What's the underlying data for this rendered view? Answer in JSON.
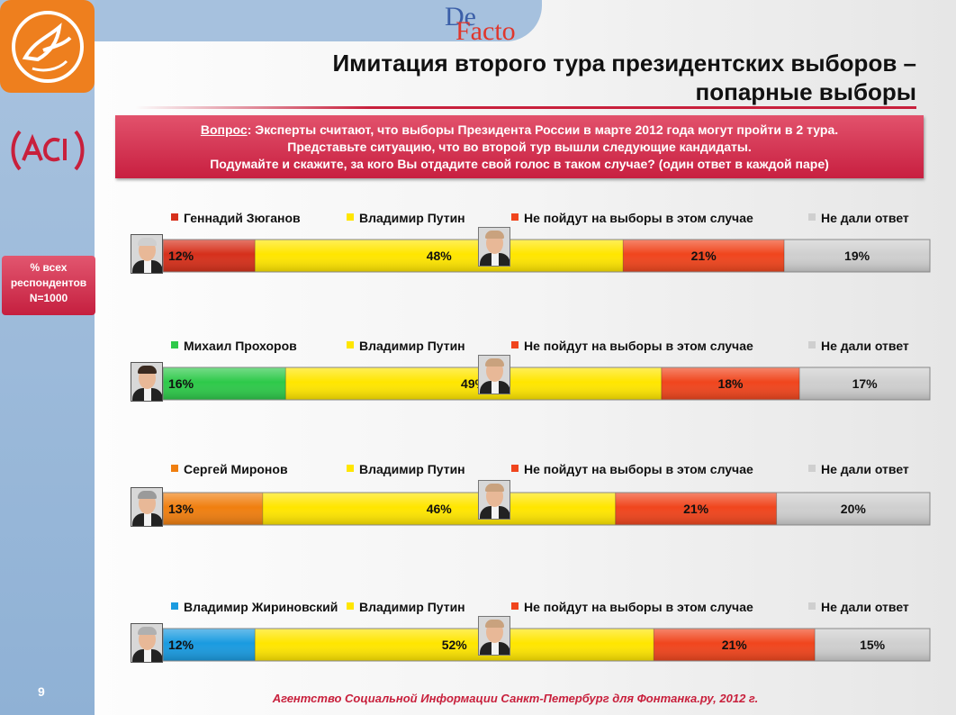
{
  "header": {
    "title_line1": "Имитация второго тура президентских выборов –",
    "title_line2": "попарные выборы",
    "logo_de": "De",
    "logo_facto": "Facto"
  },
  "question": {
    "label": "Вопрос",
    "line1": ": Эксперты считают, что выборы Президента России в марте 2012 года могут пройти в 2 тура.",
    "line2": "Представьте ситуацию, что во второй тур вышли следующие кандидаты.",
    "line3": "Подумайте и скажите, за кого Вы отдадите свой голос в таком случае? (один ответ в каждой паре)"
  },
  "respondents": {
    "line1": "% всех",
    "line2": "респондентов",
    "line3": "N=1000"
  },
  "page_number": "9",
  "footer": "Агентство Социальной Информации Санкт-Петербург для Фонтанка.ру, 2012 г.",
  "colors": {
    "putin": "#ffe600",
    "no_vote": "#f0451d",
    "no_answer": "#cfcfcf",
    "brand_red": "#c8203c",
    "sidebar_blue": "#99b8da",
    "logo_orange": "#ee7f1e"
  },
  "chart_data": {
    "type": "bar",
    "orientation": "horizontal",
    "stacked": true,
    "xlim": [
      0,
      100
    ],
    "unit": "%",
    "rows": [
      {
        "series": [
          {
            "name": "Геннадий Зюганов",
            "value": 12,
            "label": "12%",
            "color": "#d6301b"
          },
          {
            "name": "Владимир Путин",
            "value": 48,
            "label": "48%",
            "color": "#ffe600"
          },
          {
            "name": "Не пойдут на выборы в этом случае",
            "value": 21,
            "label": "21%",
            "color": "#f0451d"
          },
          {
            "name": "Не дали ответ",
            "value": 19,
            "label": "19%",
            "color": "#cfcfcf"
          }
        ]
      },
      {
        "series": [
          {
            "name": "Михаил Прохоров",
            "value": 16,
            "label": "16%",
            "color": "#2ec94a"
          },
          {
            "name": "Владимир Путин",
            "value": 49,
            "label": "49%",
            "color": "#ffe600"
          },
          {
            "name": "Не пойдут на выборы в этом случае",
            "value": 18,
            "label": "18%",
            "color": "#f0451d"
          },
          {
            "name": "Не дали ответ",
            "value": 17,
            "label": "17%",
            "color": "#cfcfcf"
          }
        ]
      },
      {
        "series": [
          {
            "name": "Сергей Миронов",
            "value": 13,
            "label": "13%",
            "color": "#f07f10"
          },
          {
            "name": "Владимир Путин",
            "value": 46,
            "label": "46%",
            "color": "#ffe600"
          },
          {
            "name": "Не пойдут на выборы в этом случае",
            "value": 21,
            "label": "21%",
            "color": "#f0451d"
          },
          {
            "name": "Не дали ответ",
            "value": 20,
            "label": "20%",
            "color": "#cfcfcf"
          }
        ]
      },
      {
        "series": [
          {
            "name": "Владимир Жириновский",
            "value": 12,
            "label": "12%",
            "color": "#1a9be0"
          },
          {
            "name": "Владимир Путин",
            "value": 52,
            "label": "52%",
            "color": "#ffe600"
          },
          {
            "name": "Не пойдут на выборы в этом случае",
            "value": 21,
            "label": "21%",
            "color": "#f0451d"
          },
          {
            "name": "Не дали ответ",
            "value": 15,
            "label": "15%",
            "color": "#cfcfcf"
          }
        ]
      }
    ]
  }
}
